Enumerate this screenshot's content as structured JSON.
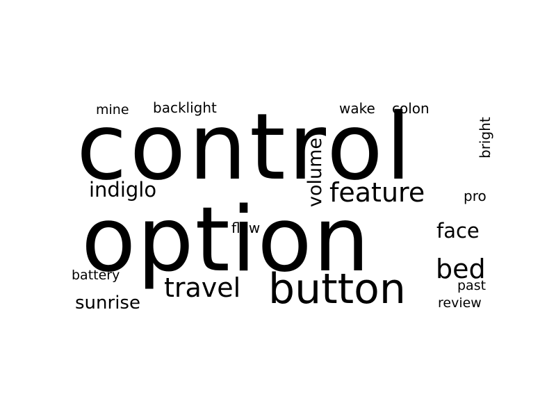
{
  "word_cloud": {
    "words": [
      {
        "text": "control"
      },
      {
        "text": "option"
      },
      {
        "text": "button"
      },
      {
        "text": "feature"
      },
      {
        "text": "travel"
      },
      {
        "text": "indiglo"
      },
      {
        "text": "sunrise"
      },
      {
        "text": "bed"
      },
      {
        "text": "face"
      },
      {
        "text": "volume"
      },
      {
        "text": "backlight"
      },
      {
        "text": "mine"
      },
      {
        "text": "wake"
      },
      {
        "text": "colon"
      },
      {
        "text": "bright"
      },
      {
        "text": "pro"
      },
      {
        "text": "flaw"
      },
      {
        "text": "battery"
      },
      {
        "text": "past"
      },
      {
        "text": "review"
      }
    ],
    "text_color": "#000000",
    "background_color": "#ffffff"
  }
}
